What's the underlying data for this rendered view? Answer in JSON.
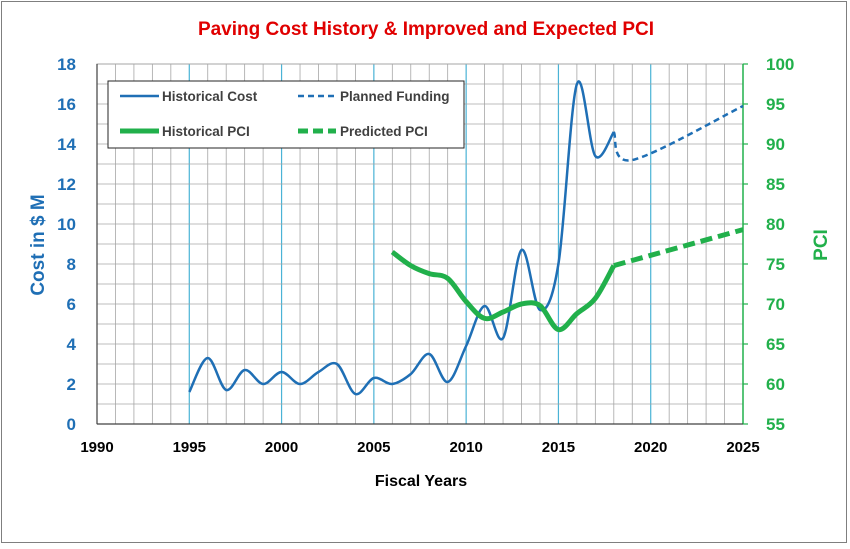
{
  "chart_data": {
    "type": "line",
    "title": "Paving Cost History & Improved and Expected PCI",
    "xlabel": "Fiscal Years",
    "ylabel": "Cost in $ M",
    "y2label": "PCI",
    "xlim": [
      1990,
      2025
    ],
    "ylim": [
      0,
      18
    ],
    "y2lim": [
      55,
      100
    ],
    "x_ticks": [
      1990,
      1995,
      2000,
      2005,
      2010,
      2015,
      2020,
      2025
    ],
    "y_ticks": [
      0,
      2,
      4,
      6,
      8,
      10,
      12,
      14,
      16,
      18
    ],
    "y2_ticks": [
      55,
      60,
      65,
      70,
      75,
      80,
      85,
      90,
      95,
      100
    ],
    "grid": true,
    "legend_position": "top-left",
    "colors": {
      "title": "#e00000",
      "cost": "#1f6fb5",
      "pci": "#21b04b",
      "axis_left": "#1f6fb5",
      "axis_right": "#21b04b",
      "grid_major": "#4ab3d6",
      "grid_minor": "#a6a6a6"
    },
    "series": [
      {
        "name": "Historical Cost",
        "axis": "left",
        "style": "solid",
        "x": [
          1995,
          1996,
          1997,
          1998,
          1999,
          2000,
          2001,
          2002,
          2003,
          2004,
          2005,
          2006,
          2007,
          2008,
          2009,
          2010,
          2011,
          2012,
          2013,
          2014,
          2015,
          2016,
          2017,
          2018
        ],
        "y": [
          1.6,
          3.3,
          1.7,
          2.7,
          2.0,
          2.6,
          2.0,
          2.6,
          3.0,
          1.5,
          2.3,
          2.0,
          2.5,
          3.5,
          2.1,
          3.9,
          5.9,
          4.3,
          8.7,
          5.7,
          8.0,
          17.0,
          13.4,
          14.6
        ]
      },
      {
        "name": "Planned Funding",
        "axis": "left",
        "style": "dashed",
        "x": [
          2018,
          2019,
          2025
        ],
        "y": [
          14.6,
          13.2,
          15.9
        ]
      },
      {
        "name": "Historical PCI",
        "axis": "right",
        "style": "solid",
        "x": [
          2006,
          2007,
          2008,
          2009,
          2010,
          2011,
          2012,
          2013,
          2014,
          2015,
          2016,
          2017,
          2018
        ],
        "y": [
          76.5,
          74.8,
          73.8,
          73.2,
          70.3,
          68.2,
          69.0,
          70.0,
          69.8,
          66.8,
          68.8,
          70.7,
          74.8
        ]
      },
      {
        "name": "Predicted PCI",
        "axis": "right",
        "style": "dashed",
        "x": [
          2018,
          2025
        ],
        "y": [
          74.8,
          79.3
        ]
      }
    ]
  }
}
